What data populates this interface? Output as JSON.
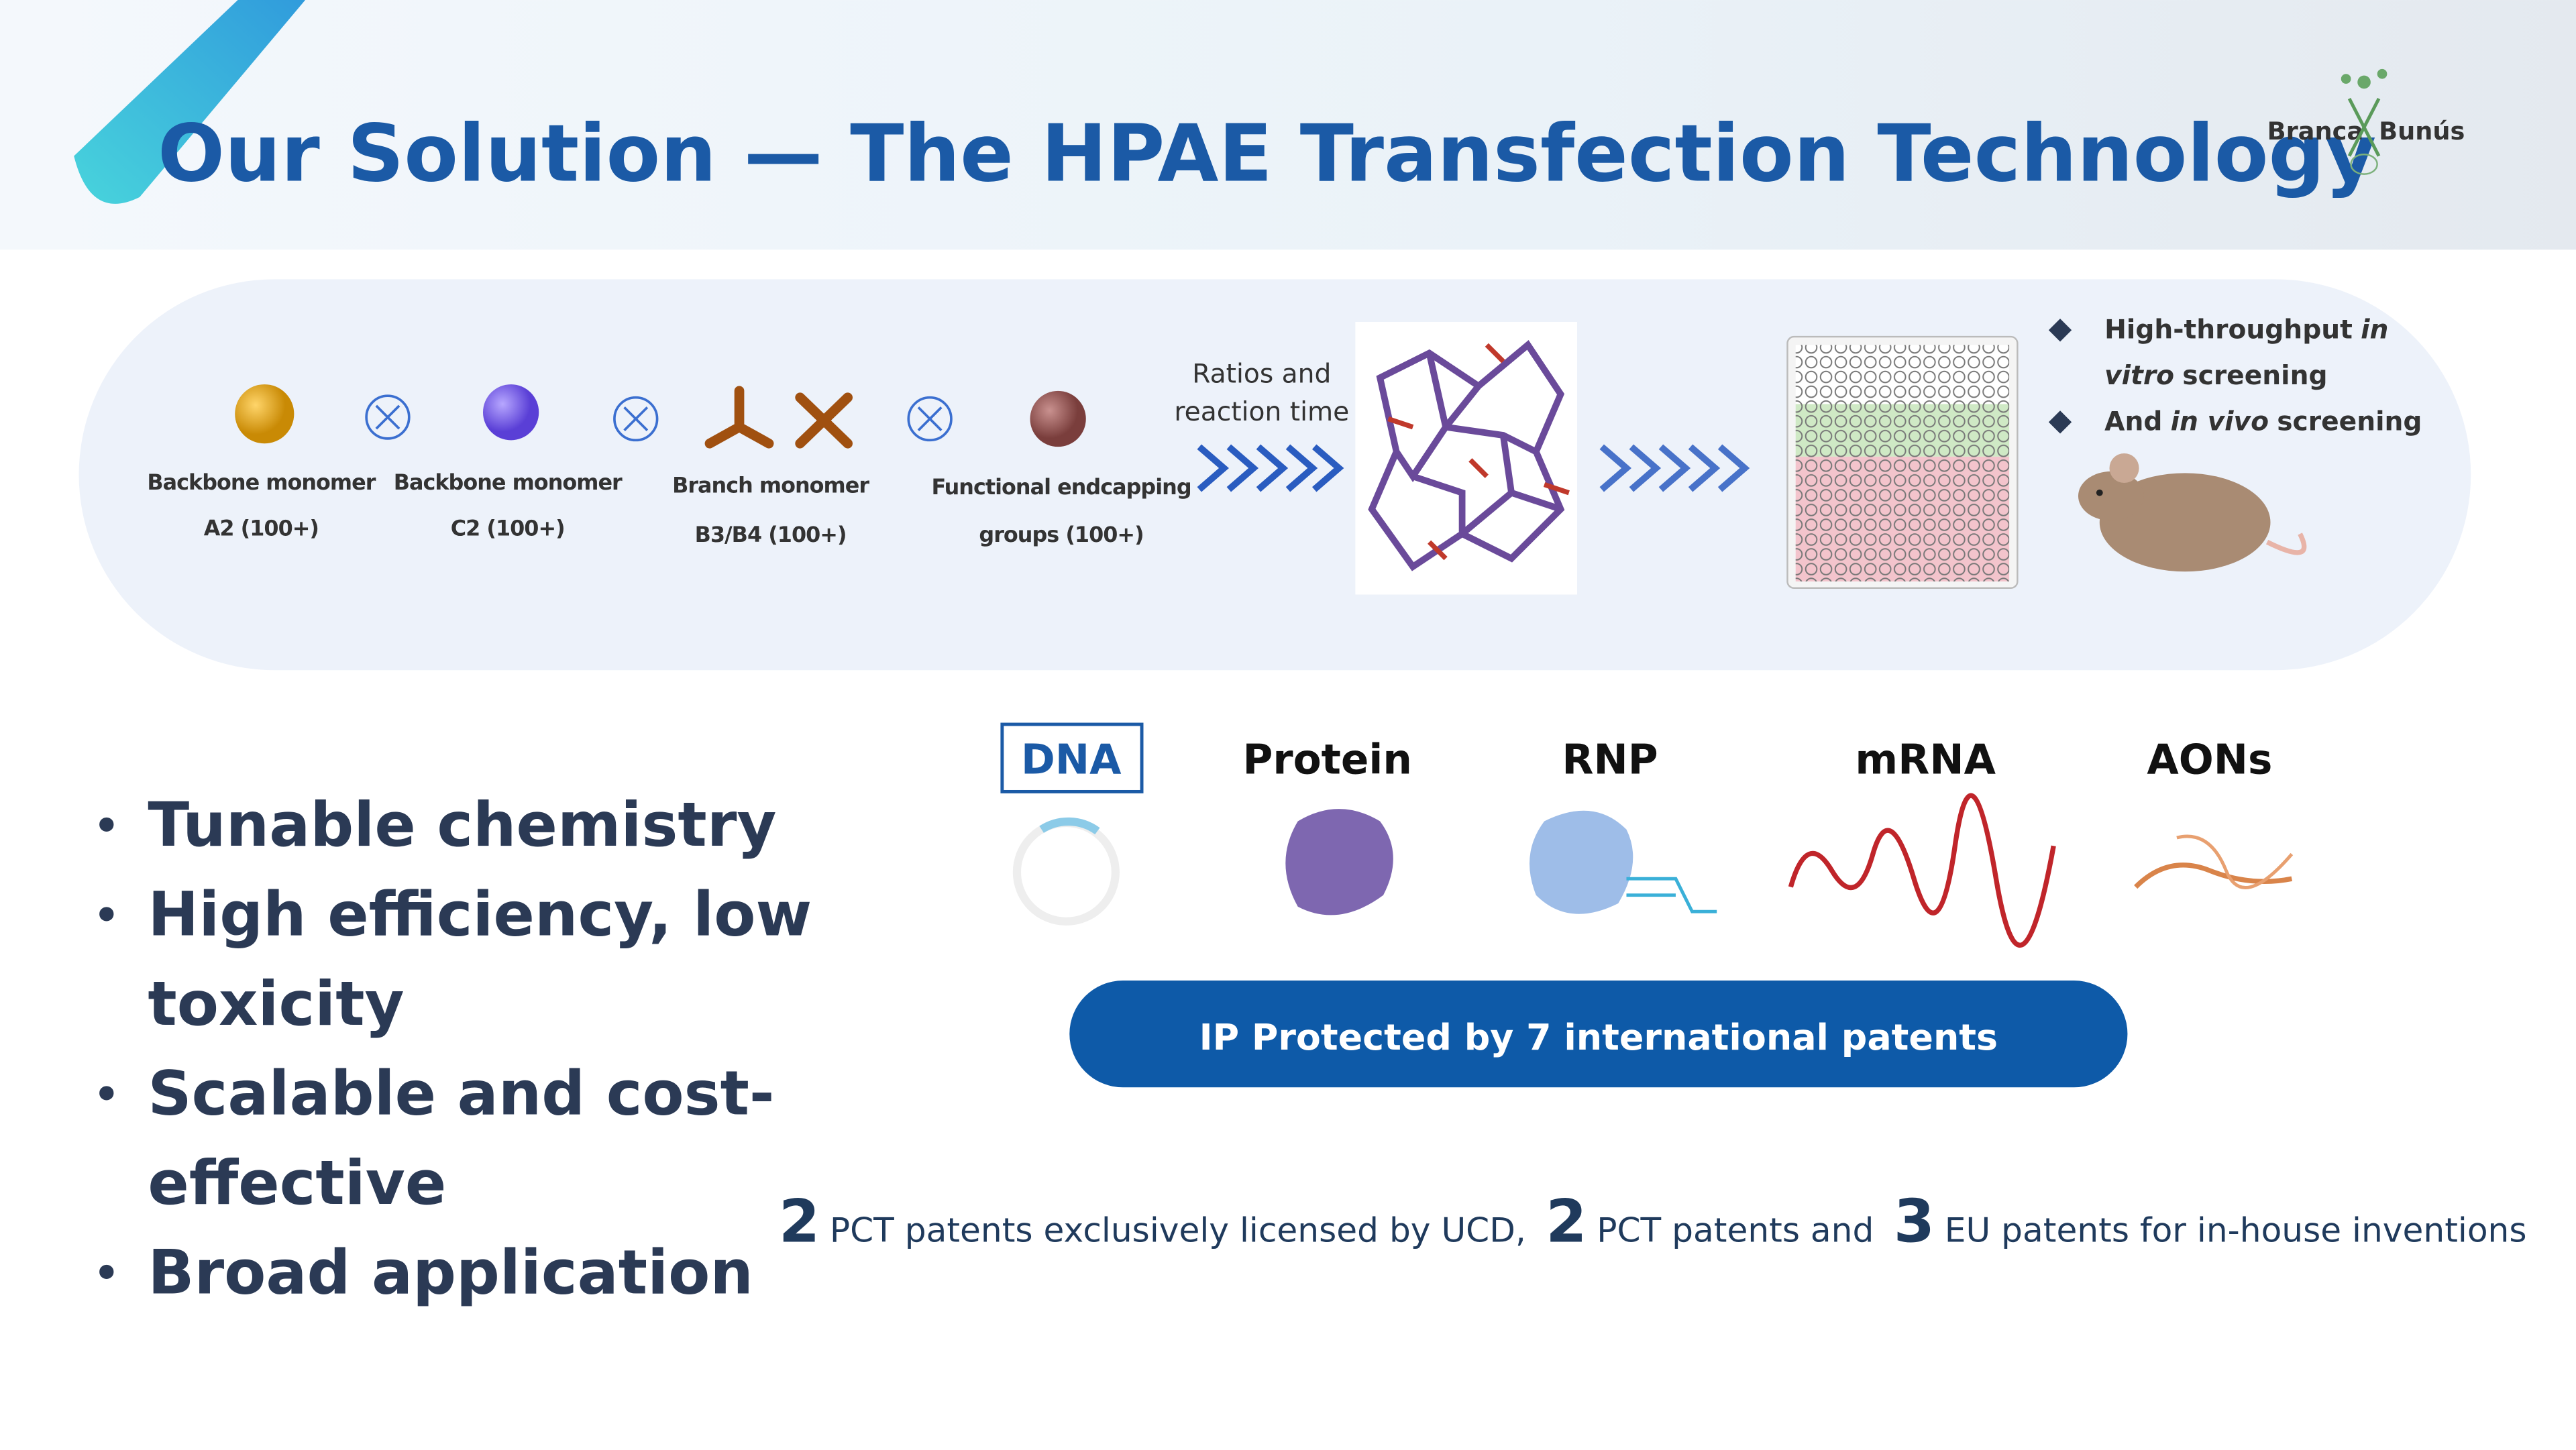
{
  "header": {
    "title": "Our Solution — The HPAE Transfection Technology",
    "logo": [
      "Branca",
      "Bunús"
    ]
  },
  "pipeline": {
    "components": [
      [
        "Backbone monomer",
        "A2 (100+)"
      ],
      [
        "Backbone monomer",
        "C2 (100+)"
      ],
      [
        "Branch monomer",
        "B3/B4 (100+)"
      ],
      [
        "Functional endcapping",
        "groups (100+)"
      ]
    ],
    "step": [
      "Ratios and",
      "reaction time"
    ],
    "screening": [
      [
        [
          {
            "text": "High-throughput",
            "italic": false
          },
          {
            "text": "in",
            "italic": true
          }
        ],
        [
          {
            "text": "vitro",
            "italic": true
          },
          {
            "text": "screening",
            "italic": false
          }
        ]
      ],
      [
        [
          {
            "text": "And",
            "italic": false
          },
          {
            "text": "in vivo",
            "italic": true
          },
          {
            "text": "screening",
            "italic": false
          }
        ]
      ]
    ]
  },
  "features": [
    [
      "Tunable chemistry"
    ],
    [
      "High efficiency, low",
      "toxicity"
    ],
    [
      "Scalable and cost-",
      "effective"
    ],
    [
      "Broad application"
    ]
  ],
  "cargos": [
    "DNA",
    "Protein",
    "RNP",
    "mRNA",
    "AONs"
  ],
  "banner": "IP Protected by 7 international patents",
  "patents": [
    {
      "count": 2,
      "text": "PCT patents exclusively licensed by UCD,"
    },
    {
      "count": 2,
      "text": "PCT patents and"
    },
    {
      "count": 3,
      "text": "EU patents for in-house inventions"
    }
  ]
}
